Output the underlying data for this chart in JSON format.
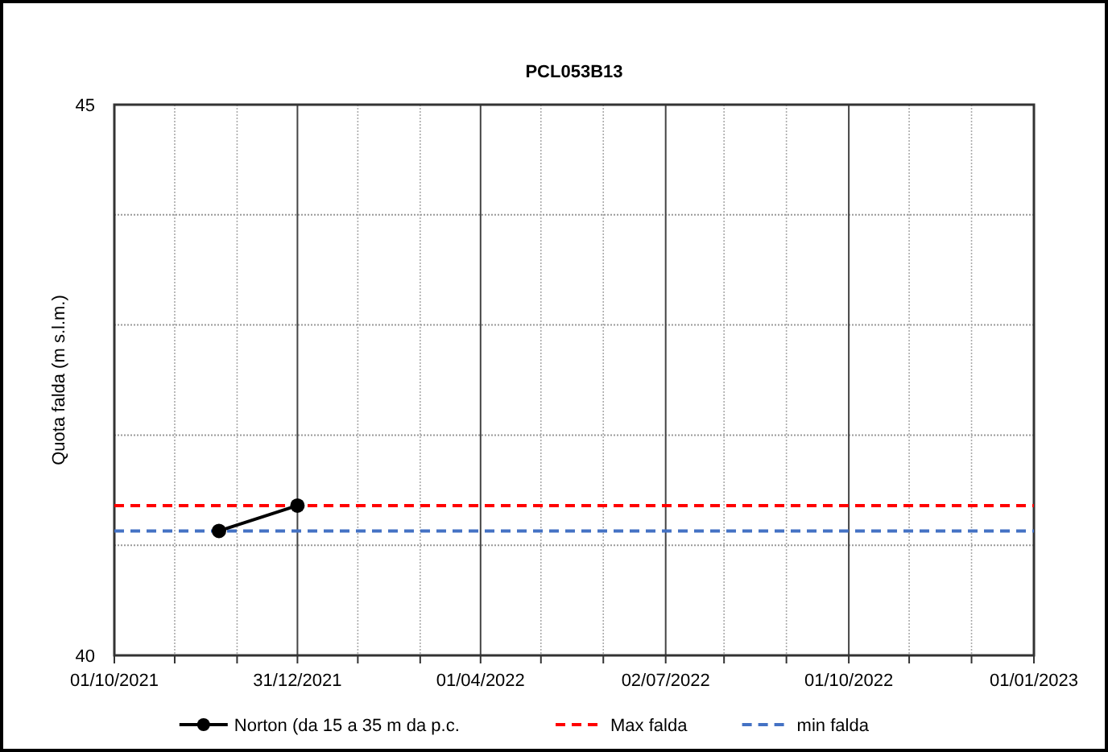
{
  "chart_data": {
    "type": "line",
    "title": "PCL053B13",
    "ylabel": "Quota falda (m s.l.m.)",
    "x": [
      "2021-11-22",
      "2021-12-31"
    ],
    "series": [
      {
        "name": "Norton (da 15 a 35 m da p.c.",
        "color": "#000000",
        "values": [
          41.13,
          41.36
        ],
        "marker": "circle",
        "line_style": "solid"
      }
    ],
    "ref_lines": [
      {
        "axis": "y",
        "value": 41.36,
        "label": "Max falda",
        "color": "#ff0000",
        "line_style": "dashed"
      },
      {
        "axis": "y",
        "value": 41.13,
        "label": "min falda",
        "color": "#4472c4",
        "line_style": "dashed"
      }
    ],
    "xlim": [
      "2021-10-01",
      "2023-01-01"
    ],
    "xticks": [
      {
        "value": "2021-10-01",
        "label": "01/10/2021"
      },
      {
        "value": "2021-10-31",
        "label": null
      },
      {
        "value": "2021-12-01",
        "label": null
      },
      {
        "value": "2021-12-31",
        "label": "31/12/2021"
      },
      {
        "value": "2022-01-30",
        "label": null
      },
      {
        "value": "2022-03-02",
        "label": null
      },
      {
        "value": "2022-04-01",
        "label": "01/04/2022"
      },
      {
        "value": "2022-05-01",
        "label": null
      },
      {
        "value": "2022-06-01",
        "label": null
      },
      {
        "value": "2022-07-02",
        "label": "02/07/2022"
      },
      {
        "value": "2022-07-31",
        "label": null
      },
      {
        "value": "2022-08-31",
        "label": null
      },
      {
        "value": "2022-10-01",
        "label": "01/10/2022"
      },
      {
        "value": "2022-10-31",
        "label": null
      },
      {
        "value": "2022-12-01",
        "label": null
      },
      {
        "value": "2023-01-01",
        "label": "01/01/2023"
      }
    ],
    "ylim": [
      40,
      45
    ],
    "yticks": [
      40,
      {
        "value": 41,
        "label": null
      },
      {
        "value": 42,
        "label": null
      },
      {
        "value": 43,
        "label": null
      },
      {
        "value": 44,
        "label": null
      },
      45
    ],
    "grid": true,
    "legend": "bottom"
  }
}
